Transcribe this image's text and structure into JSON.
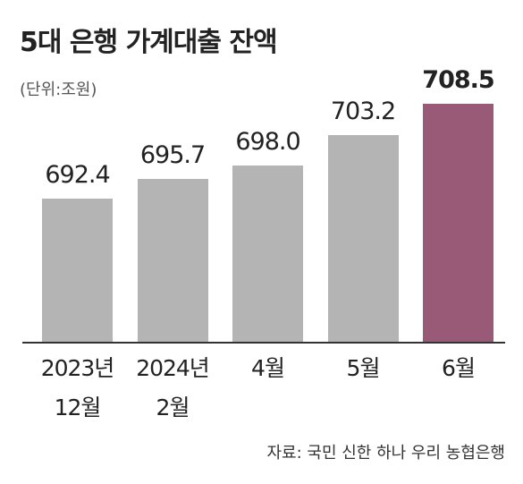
{
  "chart_data": {
    "type": "bar",
    "title": "5대 은행 가계대출 잔액",
    "subtitle": "(단위:조원)",
    "categories": [
      "2023년\n12월",
      "2024년\n2월",
      "4월",
      "5월",
      "6월"
    ],
    "values": [
      692.4,
      695.7,
      698.0,
      703.2,
      708.5
    ],
    "value_labels": [
      "692.4",
      "695.7",
      "698.0",
      "703.2",
      "708.5"
    ],
    "colors": [
      "#b4b4b4",
      "#b4b4b4",
      "#b4b4b4",
      "#b4b4b4",
      "#985a77"
    ],
    "source": "자료: 국민 신한 하나 우리 농협은행"
  }
}
